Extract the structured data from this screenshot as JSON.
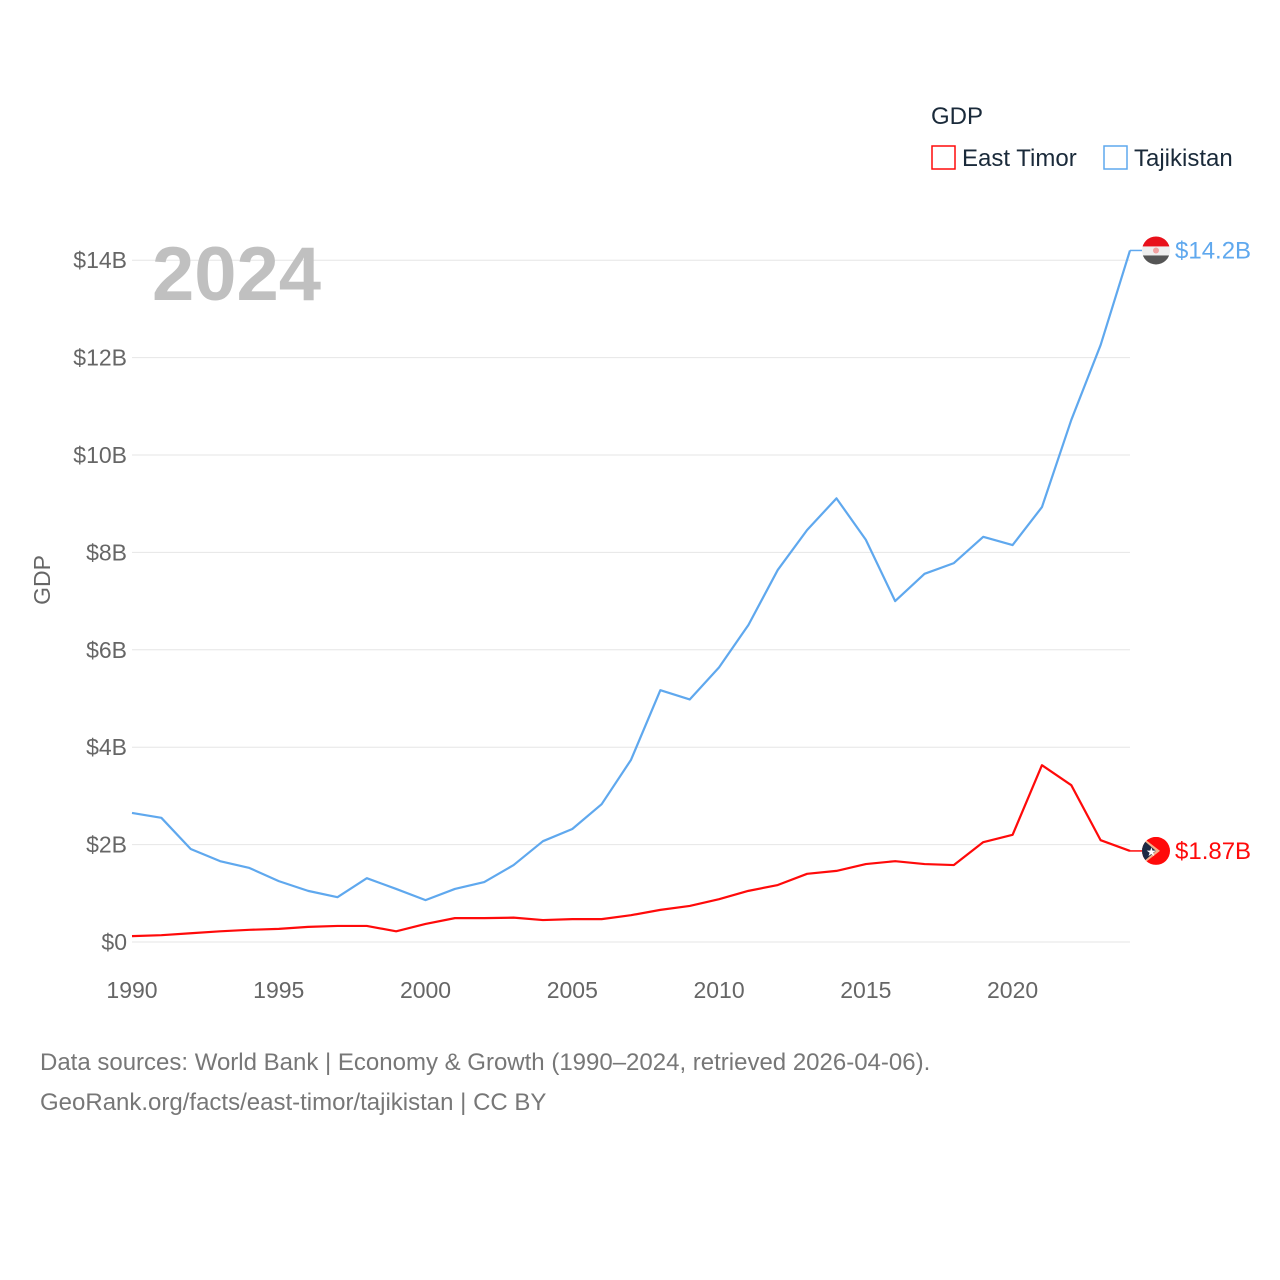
{
  "chart_data": {
    "type": "line",
    "title": "GDP",
    "legend_title": "GDP",
    "legend_position": "top-right",
    "ylabel": "GDP",
    "xlabel": "",
    "year_label": "2024",
    "ylim": [
      0,
      14.2
    ],
    "xlim": [
      1990,
      2024
    ],
    "y_ticks": [
      0,
      2,
      4,
      6,
      8,
      10,
      12,
      14
    ],
    "y_tick_labels": [
      "$0",
      "$2B",
      "$4B",
      "$6B",
      "$8B",
      "$10B",
      "$12B",
      "$14B"
    ],
    "x_ticks": [
      1990,
      1995,
      2000,
      2005,
      2010,
      2015,
      2020
    ],
    "x_tick_labels": [
      "1990",
      "1995",
      "2000",
      "2005",
      "2010",
      "2015",
      "2020"
    ],
    "grid": true,
    "unit": "billion USD",
    "x": [
      1990,
      1991,
      1992,
      1993,
      1994,
      1995,
      1996,
      1997,
      1998,
      1999,
      2000,
      2001,
      2002,
      2003,
      2004,
      2005,
      2006,
      2007,
      2008,
      2009,
      2010,
      2011,
      2012,
      2013,
      2014,
      2015,
      2016,
      2017,
      2018,
      2019,
      2020,
      2021,
      2022,
      2023,
      2024
    ],
    "series": [
      {
        "name": "East Timor",
        "color": "#ff0a0a",
        "end_label": "$1.87B",
        "values": [
          0.12,
          0.14,
          0.18,
          0.22,
          0.25,
          0.27,
          0.31,
          0.33,
          0.33,
          0.22,
          0.37,
          0.49,
          0.49,
          0.5,
          0.45,
          0.47,
          0.47,
          0.55,
          0.66,
          0.74,
          0.88,
          1.05,
          1.17,
          1.4,
          1.46,
          1.6,
          1.66,
          1.6,
          1.58,
          2.05,
          2.2,
          3.63,
          3.22,
          2.09,
          1.87
        ]
      },
      {
        "name": "Tajikistan",
        "color": "#5fa8ee",
        "end_label": "$14.2B",
        "values": [
          2.65,
          2.55,
          1.91,
          1.66,
          1.52,
          1.25,
          1.05,
          0.92,
          1.31,
          1.09,
          0.86,
          1.09,
          1.23,
          1.58,
          2.07,
          2.32,
          2.83,
          3.74,
          5.17,
          4.98,
          5.64,
          6.51,
          7.64,
          8.46,
          9.11,
          8.26,
          7.0,
          7.56,
          7.78,
          8.32,
          8.15,
          8.93,
          10.72,
          12.26,
          14.2
        ]
      }
    ]
  },
  "footer": {
    "line1": "Data sources: World Bank | Economy & Growth (1990–2024, retrieved 2026-04-06).",
    "line2": "GeoRank.org/facts/east-timor/tajikistan | CC BY"
  }
}
